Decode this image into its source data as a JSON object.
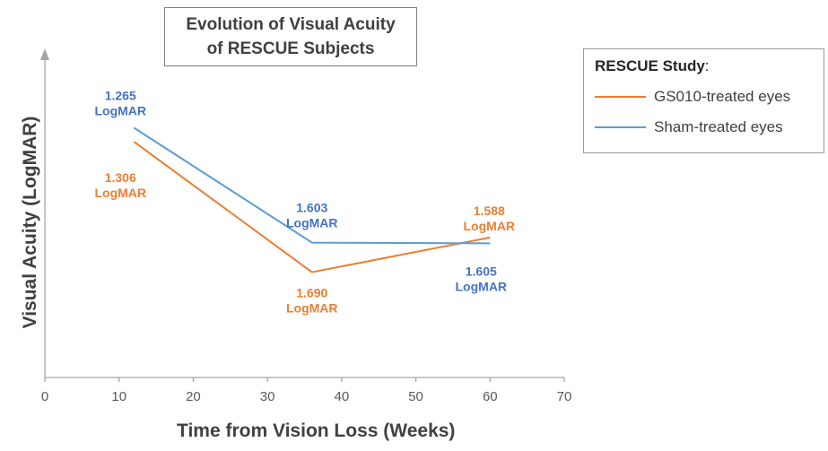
{
  "chart_data": {
    "type": "line",
    "title_lines": [
      "Evolution of Visual Acuity",
      "of RESCUE Subjects"
    ],
    "xlabel": "Time from Vision Loss (Weeks)",
    "ylabel": "Visual Acuity (LogMAR)",
    "xlim": [
      0,
      70
    ],
    "xticks": [
      0,
      10,
      20,
      30,
      40,
      50,
      60,
      70
    ],
    "ylim_reversed": [
      2.0,
      1.1
    ],
    "y_axis_tick_labels_shown": false,
    "grid": false,
    "legend": {
      "title": "RESCUE Study",
      "title_suffix": ":",
      "placement": "top-right"
    },
    "series": [
      {
        "name": "GS010-treated eyes",
        "color": "#ED7D31",
        "points": [
          {
            "x": 12,
            "y": 1.306,
            "label_value": "1.306",
            "label_unit": "LogMAR"
          },
          {
            "x": 36,
            "y": 1.69,
            "label_value": "1.690",
            "label_unit": "LogMAR"
          },
          {
            "x": 60,
            "y": 1.588,
            "label_value": "1.588",
            "label_unit": "LogMAR"
          }
        ]
      },
      {
        "name": "Sham-treated eyes",
        "color": "#5B9BD5",
        "label_color": "#4472C4",
        "points": [
          {
            "x": 12,
            "y": 1.265,
            "label_value": "1.265",
            "label_unit": "LogMAR"
          },
          {
            "x": 36,
            "y": 1.603,
            "label_value": "1.603",
            "label_unit": "LogMAR"
          },
          {
            "x": 60,
            "y": 1.605,
            "label_value": "1.605",
            "label_unit": "LogMAR"
          }
        ]
      }
    ]
  }
}
